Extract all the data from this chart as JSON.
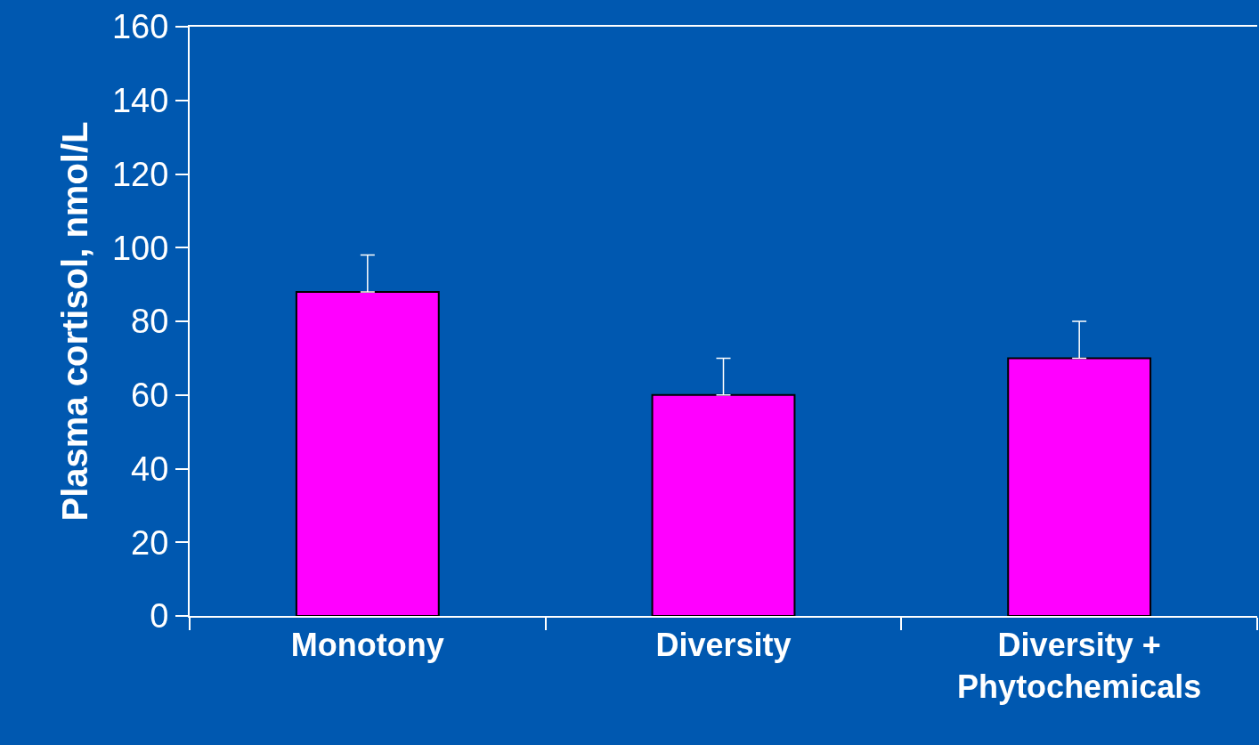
{
  "chart_data": {
    "type": "bar",
    "ylabel": "Plasma cortisol, nmol/L",
    "categories": [
      "Monotony",
      "Diversity",
      "Diversity +\nPhytochemicals"
    ],
    "values": [
      88,
      60,
      70
    ],
    "errors": [
      [
        88,
        98
      ],
      [
        60,
        70
      ],
      [
        70,
        80
      ]
    ],
    "color": "#ff00ff",
    "ylim": [
      0,
      160
    ],
    "yticks": [
      0,
      20,
      40,
      60,
      80,
      100,
      120,
      140,
      160
    ],
    "grid": false
  }
}
